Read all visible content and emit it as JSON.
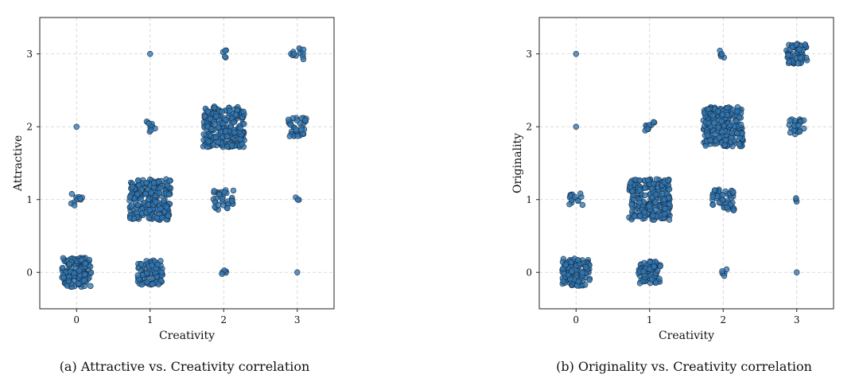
{
  "chart_data": [
    {
      "type": "scatter",
      "caption": "(a) Attractive vs. Creativity correlation",
      "xlabel": "Creativity",
      "ylabel": "Attractive",
      "xticks": [
        "0",
        "1",
        "2",
        "3"
      ],
      "yticks": [
        "0",
        "1",
        "2",
        "3"
      ],
      "xlim": [
        -0.5,
        3.5
      ],
      "ylim": [
        -0.5,
        3.5
      ],
      "grid": true,
      "jitter": "points jittered around integer ratings",
      "marker_color": "#2f77b4",
      "clusters": [
        {
          "x": 0,
          "y": 0,
          "count": 150,
          "spread": 0.2
        },
        {
          "x": 0,
          "y": 1,
          "count": 10,
          "spread": 0.08
        },
        {
          "x": 0,
          "y": 2,
          "count": 1,
          "spread": 0
        },
        {
          "x": 1,
          "y": 0,
          "count": 90,
          "spread": 0.17
        },
        {
          "x": 1,
          "y": 1,
          "count": 240,
          "spread": 0.28
        },
        {
          "x": 1,
          "y": 2,
          "count": 10,
          "spread": 0.08
        },
        {
          "x": 1,
          "y": 3,
          "count": 1,
          "spread": 0
        },
        {
          "x": 2,
          "y": 0,
          "count": 5,
          "spread": 0.05
        },
        {
          "x": 2,
          "y": 1,
          "count": 35,
          "spread": 0.14
        },
        {
          "x": 2,
          "y": 2,
          "count": 250,
          "spread": 0.28
        },
        {
          "x": 2,
          "y": 3,
          "count": 5,
          "spread": 0.05
        },
        {
          "x": 3,
          "y": 0,
          "count": 1,
          "spread": 0
        },
        {
          "x": 3,
          "y": 1,
          "count": 3,
          "spread": 0.03
        },
        {
          "x": 3,
          "y": 2,
          "count": 35,
          "spread": 0.13
        },
        {
          "x": 3,
          "y": 3,
          "count": 12,
          "spread": 0.09
        }
      ]
    },
    {
      "type": "scatter",
      "caption": "(b) Originality vs. Creativity correlation",
      "xlabel": "Creativity",
      "ylabel": "Originality",
      "xticks": [
        "0",
        "1",
        "2",
        "3"
      ],
      "yticks": [
        "0",
        "1",
        "2",
        "3"
      ],
      "xlim": [
        -0.5,
        3.5
      ],
      "ylim": [
        -0.5,
        3.5
      ],
      "grid": true,
      "jitter": "points jittered around integer ratings",
      "marker_color": "#2f77b4",
      "clusters": [
        {
          "x": 0,
          "y": 0,
          "count": 120,
          "spread": 0.19
        },
        {
          "x": 0,
          "y": 1,
          "count": 15,
          "spread": 0.09
        },
        {
          "x": 0,
          "y": 2,
          "count": 1,
          "spread": 0
        },
        {
          "x": 0,
          "y": 3,
          "count": 1,
          "spread": 0
        },
        {
          "x": 1,
          "y": 0,
          "count": 80,
          "spread": 0.15
        },
        {
          "x": 1,
          "y": 1,
          "count": 230,
          "spread": 0.28
        },
        {
          "x": 1,
          "y": 2,
          "count": 10,
          "spread": 0.07
        },
        {
          "x": 2,
          "y": 0,
          "count": 5,
          "spread": 0.05
        },
        {
          "x": 2,
          "y": 1,
          "count": 50,
          "spread": 0.15
        },
        {
          "x": 2,
          "y": 2,
          "count": 230,
          "spread": 0.27
        },
        {
          "x": 2,
          "y": 3,
          "count": 6,
          "spread": 0.05
        },
        {
          "x": 3,
          "y": 0,
          "count": 1,
          "spread": 0
        },
        {
          "x": 3,
          "y": 1,
          "count": 3,
          "spread": 0.03
        },
        {
          "x": 3,
          "y": 2,
          "count": 25,
          "spread": 0.11
        },
        {
          "x": 3,
          "y": 3,
          "count": 60,
          "spread": 0.14
        }
      ]
    }
  ]
}
